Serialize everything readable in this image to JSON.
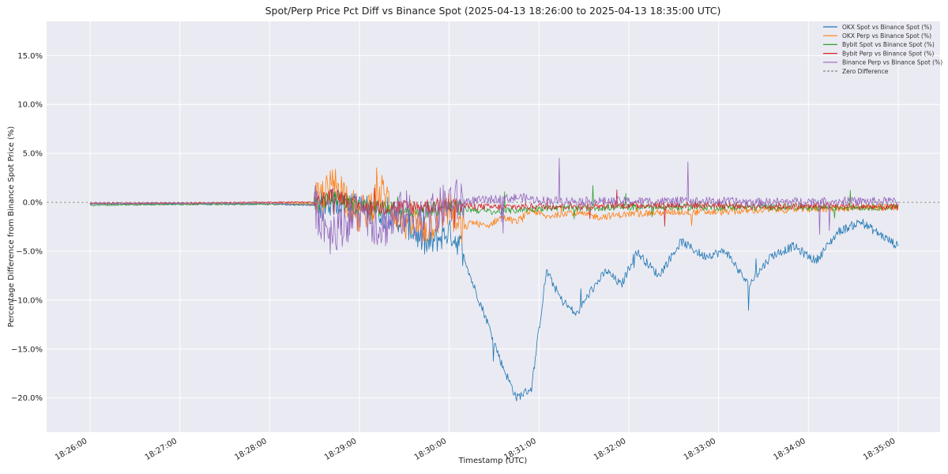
{
  "chart_data": {
    "type": "line",
    "title": "Spot/Perp Price Pct Diff vs Binance Spot (2025-04-13 18:26:00 to 2025-04-13 18:35:00 UTC)",
    "xlabel": "Timestamp (UTC)",
    "ylabel": "Percentage Difference from Binance Spot Price (%)",
    "xlim": [
      "18:25:31",
      "18:35:28"
    ],
    "ylim": [
      -23.5,
      18.5
    ],
    "x_ticks": [
      "18:26:00",
      "18:27:00",
      "18:28:00",
      "18:29:00",
      "18:30:00",
      "18:31:00",
      "18:32:00",
      "18:33:00",
      "18:34:00",
      "18:35:00"
    ],
    "y_ticks": [
      15,
      10,
      5,
      0,
      -5,
      -10,
      -15,
      -20
    ],
    "y_tick_labels": [
      "15.0%",
      "10.0%",
      "5.0%",
      "0.0%",
      "−5.0%",
      "−10.0%",
      "−15.0%",
      "−20.0%"
    ],
    "grid": true,
    "legend_position": "top-right",
    "reference_line": {
      "name": "Zero Difference",
      "y": 0,
      "color": "#888888",
      "style": "dashed"
    },
    "series": [
      {
        "name": "OKX Spot vs Binance Spot (%)",
        "color": "#1f77b4",
        "x": [
          "18:26:00",
          "18:27:00",
          "18:28:00",
          "18:28:30",
          "18:28:45",
          "18:29:00",
          "18:29:15",
          "18:29:30",
          "18:29:45",
          "18:30:00",
          "18:30:08",
          "18:30:15",
          "18:30:25",
          "18:30:35",
          "18:30:45",
          "18:30:55",
          "18:31:05",
          "18:31:15",
          "18:31:25",
          "18:31:35",
          "18:31:45",
          "18:31:55",
          "18:32:05",
          "18:32:20",
          "18:32:35",
          "18:32:50",
          "18:33:05",
          "18:33:20",
          "18:33:35",
          "18:33:50",
          "18:34:05",
          "18:34:20",
          "18:34:35",
          "18:34:50",
          "18:35:00"
        ],
        "y": [
          -0.2,
          -0.2,
          -0.2,
          -0.3,
          0.0,
          -0.5,
          -1.0,
          -2.0,
          -4.5,
          -3.0,
          -4.5,
          -8.0,
          -12.0,
          -16.5,
          -20.0,
          -19.0,
          -7.0,
          -10.0,
          -11.5,
          -9.0,
          -7.0,
          -8.5,
          -5.0,
          -7.5,
          -4.0,
          -5.5,
          -5.0,
          -8.5,
          -5.5,
          -4.5,
          -6.0,
          -3.0,
          -2.0,
          -3.5,
          -4.5
        ]
      },
      {
        "name": "OKX Perp vs Binance Spot (%)",
        "color": "#ff7f0e",
        "x": [
          "18:26:00",
          "18:27:00",
          "18:28:00",
          "18:28:30",
          "18:28:45",
          "18:29:00",
          "18:29:15",
          "18:29:30",
          "18:29:45",
          "18:30:00",
          "18:30:08",
          "18:30:15",
          "18:30:25",
          "18:30:35",
          "18:30:45",
          "18:30:55",
          "18:31:05",
          "18:31:20",
          "18:31:40",
          "18:32:00",
          "18:32:30",
          "18:33:00",
          "18:33:30",
          "18:34:00",
          "18:34:30",
          "18:35:00"
        ],
        "y": [
          -0.1,
          -0.1,
          -0.1,
          -0.1,
          2.0,
          -1.5,
          1.0,
          -2.0,
          -2.5,
          -0.5,
          -3.0,
          -2.0,
          -2.5,
          -1.5,
          -2.0,
          -0.8,
          -1.5,
          -1.0,
          -1.5,
          -1.2,
          -1.0,
          -1.0,
          -0.8,
          -0.7,
          -0.6,
          -0.5
        ]
      },
      {
        "name": "Bybit Spot vs Binance Spot (%)",
        "color": "#2ca02c",
        "x": [
          "18:26:00",
          "18:27:00",
          "18:28:00",
          "18:28:30",
          "18:28:45",
          "18:29:00",
          "18:29:30",
          "18:30:00",
          "18:30:30",
          "18:31:00",
          "18:31:30",
          "18:32:00",
          "18:32:30",
          "18:33:00",
          "18:33:30",
          "18:34:00",
          "18:34:30",
          "18:35:00"
        ],
        "y": [
          -0.3,
          -0.2,
          -0.2,
          -0.2,
          0.5,
          -0.5,
          -0.8,
          -0.5,
          -1.0,
          -0.6,
          -0.6,
          -0.5,
          -0.5,
          -0.5,
          -0.5,
          -0.5,
          -0.5,
          -0.5
        ]
      },
      {
        "name": "Bybit Perp vs Binance Spot (%)",
        "color": "#d62728",
        "x": [
          "18:26:00",
          "18:27:00",
          "18:28:00",
          "18:28:30",
          "18:28:45",
          "18:29:00",
          "18:29:30",
          "18:30:00",
          "18:30:30",
          "18:31:00",
          "18:31:30",
          "18:32:00",
          "18:32:30",
          "18:33:00",
          "18:33:30",
          "18:34:00",
          "18:34:30",
          "18:35:00"
        ],
        "y": [
          -0.1,
          -0.1,
          0.0,
          0.0,
          0.8,
          -0.5,
          -0.5,
          -0.3,
          -0.5,
          -0.4,
          -0.4,
          -0.3,
          -0.3,
          -0.3,
          -0.4,
          -0.4,
          -0.4,
          -0.5
        ]
      },
      {
        "name": "Binance Perp vs Binance Spot (%)",
        "color": "#9467bd",
        "x": [
          "18:26:00",
          "18:27:00",
          "18:28:00",
          "18:28:30",
          "18:28:40",
          "18:28:50",
          "18:29:00",
          "18:29:15",
          "18:29:30",
          "18:29:45",
          "18:30:00",
          "18:30:30",
          "18:30:48",
          "18:31:00",
          "18:31:30",
          "18:32:00",
          "18:32:30",
          "18:33:00",
          "18:33:30",
          "18:34:00",
          "18:34:30",
          "18:35:00"
        ],
        "y": [
          -0.1,
          -0.1,
          -0.1,
          -0.3,
          -3.0,
          -2.0,
          -1.0,
          -2.5,
          -1.0,
          -2.0,
          0.0,
          0.3,
          0.5,
          0.2,
          0.1,
          0.1,
          0.1,
          0.1,
          0.0,
          0.1,
          0.1,
          0.1
        ]
      }
    ]
  }
}
